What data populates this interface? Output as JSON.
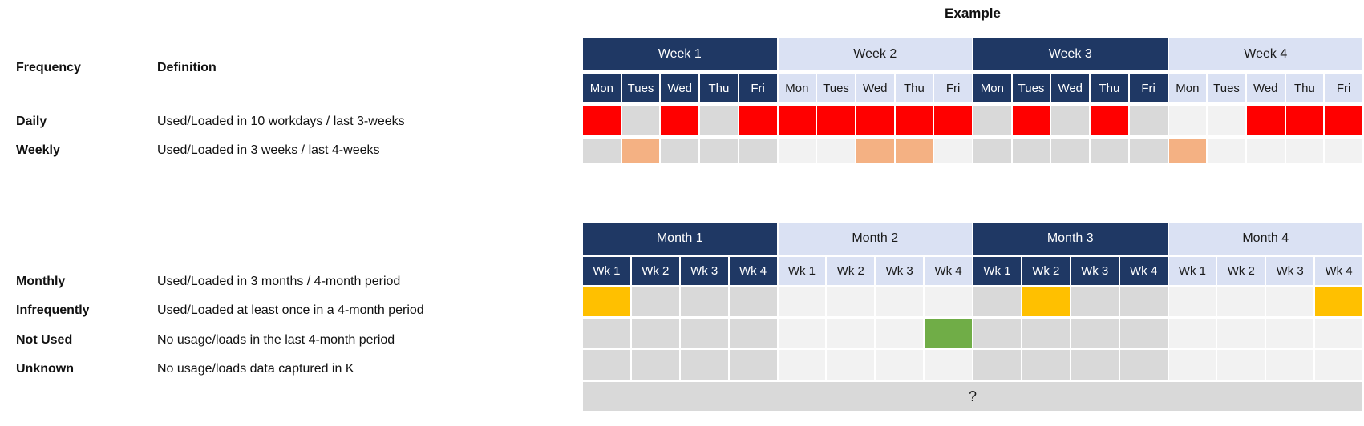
{
  "example_title": "Example",
  "legend": {
    "header": {
      "frequency": "Frequency",
      "definition": "Definition"
    },
    "rows": [
      {
        "frequency": "Daily",
        "definition": "Used/Loaded in 10 workdays / last 3-weeks"
      },
      {
        "frequency": "Weekly",
        "definition": "Used/Loaded in 3 weeks / last 4-weeks"
      },
      {
        "frequency": "Monthly",
        "definition": "Used/Loaded in 3 months / 4-month period"
      },
      {
        "frequency": "Infrequently",
        "definition": "Used/Loaded at least once in a 4-month period"
      },
      {
        "frequency": "Not Used",
        "definition": "No usage/loads in the last 4-month period"
      },
      {
        "frequency": "Unknown",
        "definition": "No usage/loads data captured in K"
      }
    ]
  },
  "colors": {
    "navy": "#1F3864",
    "light_blue": "#DAE1F3",
    "red": "#FF0000",
    "orange": "#F4B183",
    "gold": "#FFC000",
    "green": "#70AD47",
    "gray": "#D9D9D9",
    "light_gray": "#F2F2F2"
  },
  "week_table": {
    "group_headers": [
      "Week 1",
      "Week 2",
      "Week 3",
      "Week 4"
    ],
    "day_headers": [
      "Mon",
      "Tues",
      "Wed",
      "Thu",
      "Fri"
    ],
    "rows": [
      {
        "name": "daily",
        "cells": [
          "red",
          "gray",
          "red",
          "gray",
          "red",
          "red",
          "red",
          "red",
          "red",
          "red",
          "gray",
          "red",
          "gray",
          "red",
          "gray",
          "light_gray",
          "light_gray",
          "red",
          "red",
          "red"
        ]
      },
      {
        "name": "weekly",
        "cells": [
          "gray",
          "orange",
          "gray",
          "gray",
          "gray",
          "light_gray",
          "light_gray",
          "orange",
          "orange",
          "light_gray",
          "gray",
          "gray",
          "gray",
          "gray",
          "gray",
          "orange",
          "light_gray",
          "light_gray",
          "light_gray",
          "light_gray"
        ]
      }
    ]
  },
  "month_table": {
    "group_headers": [
      "Month 1",
      "Month 2",
      "Month 3",
      "Month 4"
    ],
    "week_headers": [
      "Wk 1",
      "Wk 2",
      "Wk 3",
      "Wk 4"
    ],
    "rows": [
      {
        "name": "monthly",
        "cells": [
          "gold",
          "gray",
          "gray",
          "gray",
          "light_gray",
          "light_gray",
          "light_gray",
          "light_gray",
          "gray",
          "gold",
          "gray",
          "gray",
          "light_gray",
          "light_gray",
          "light_gray",
          "gold"
        ]
      },
      {
        "name": "infrequently",
        "cells": [
          "gray",
          "gray",
          "gray",
          "gray",
          "light_gray",
          "light_gray",
          "light_gray",
          "green",
          "gray",
          "gray",
          "gray",
          "gray",
          "light_gray",
          "light_gray",
          "light_gray",
          "light_gray"
        ]
      },
      {
        "name": "not_used",
        "cells": [
          "gray",
          "gray",
          "gray",
          "gray",
          "light_gray",
          "light_gray",
          "light_gray",
          "light_gray",
          "gray",
          "gray",
          "gray",
          "gray",
          "light_gray",
          "light_gray",
          "light_gray",
          "light_gray"
        ]
      }
    ],
    "unknown_row_label": "?"
  }
}
